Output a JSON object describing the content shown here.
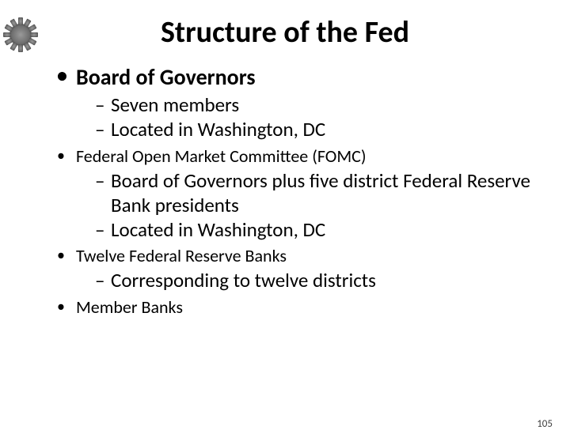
{
  "title": "Structure of the Fed",
  "title_fontsize": 38,
  "title_color": "#000000",
  "gear_color": "#6b6b6b",
  "page_number": "105",
  "items": [
    {
      "label": "Board of Governors",
      "style": "big",
      "subs": [
        "Seven members",
        "Located in Washington, DC"
      ]
    },
    {
      "label": "Federal Open Market Committee (FOMC)",
      "style": "med",
      "subs": [
        "Board of Governors plus five district Federal Reserve Bank presidents",
        "Located in Washington, DC"
      ]
    },
    {
      "label": "Twelve Federal Reserve Banks",
      "style": "med",
      "subs": [
        "Corresponding to twelve districts"
      ]
    },
    {
      "label": "Member  Banks",
      "style": "med",
      "subs": []
    }
  ]
}
